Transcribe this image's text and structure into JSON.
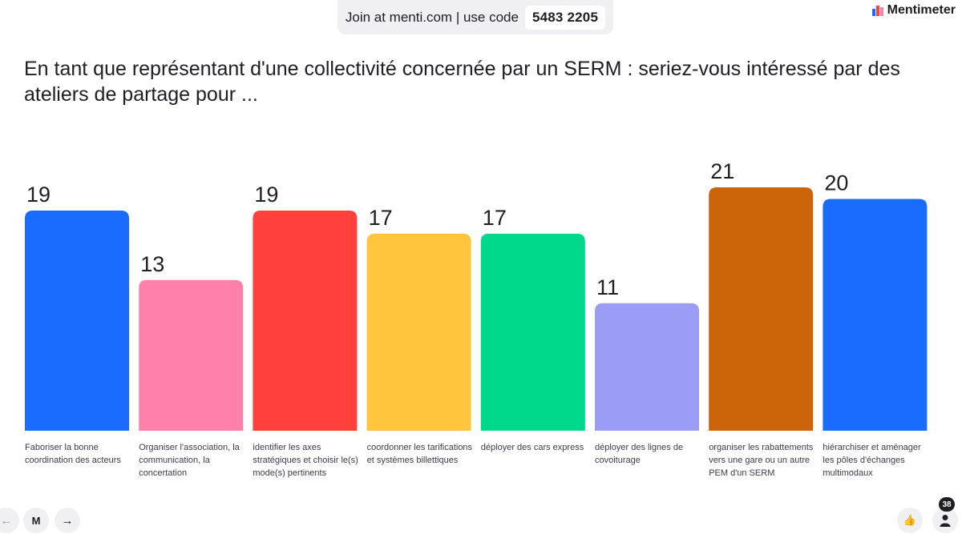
{
  "header": {
    "join_text": "Join at menti.com | use code",
    "code": "5483 2205",
    "brand": "Mentimeter"
  },
  "chart_data": {
    "type": "bar",
    "title": "En tant que représentant d'une collectivité concernée par un SERM :  seriez-vous intéressé par des ateliers de partage pour ...",
    "categories": [
      "Faboriser la bonne coordination des acteurs",
      "Organiser l'association, la communication, la concertation",
      "identifier les axes stratégiques et choisir le(s) mode(s) pertinents",
      "coordonner les tarifications et systèmes billettiques",
      "déployer des cars express",
      "déployer des lignes de covoiturage",
      "organiser les rabattements vers une gare ou un autre PEM d'un SERM",
      "hiérarchiser et aménager les pôles d'échanges multimodaux"
    ],
    "values": [
      19,
      13,
      19,
      17,
      17,
      11,
      21,
      20
    ],
    "colors": [
      "#196cff",
      "#ff80ab",
      "#ff403d",
      "#ffc53d",
      "#00d98b",
      "#9b9cf6",
      "#cc640a",
      "#196cff"
    ],
    "ylim": [
      0,
      21
    ],
    "grid": false,
    "legend": "none"
  },
  "footer": {
    "prev_icon": "←",
    "home_icon": "M",
    "next_icon": "→",
    "like_icon": "👍",
    "participants_count": "38"
  }
}
